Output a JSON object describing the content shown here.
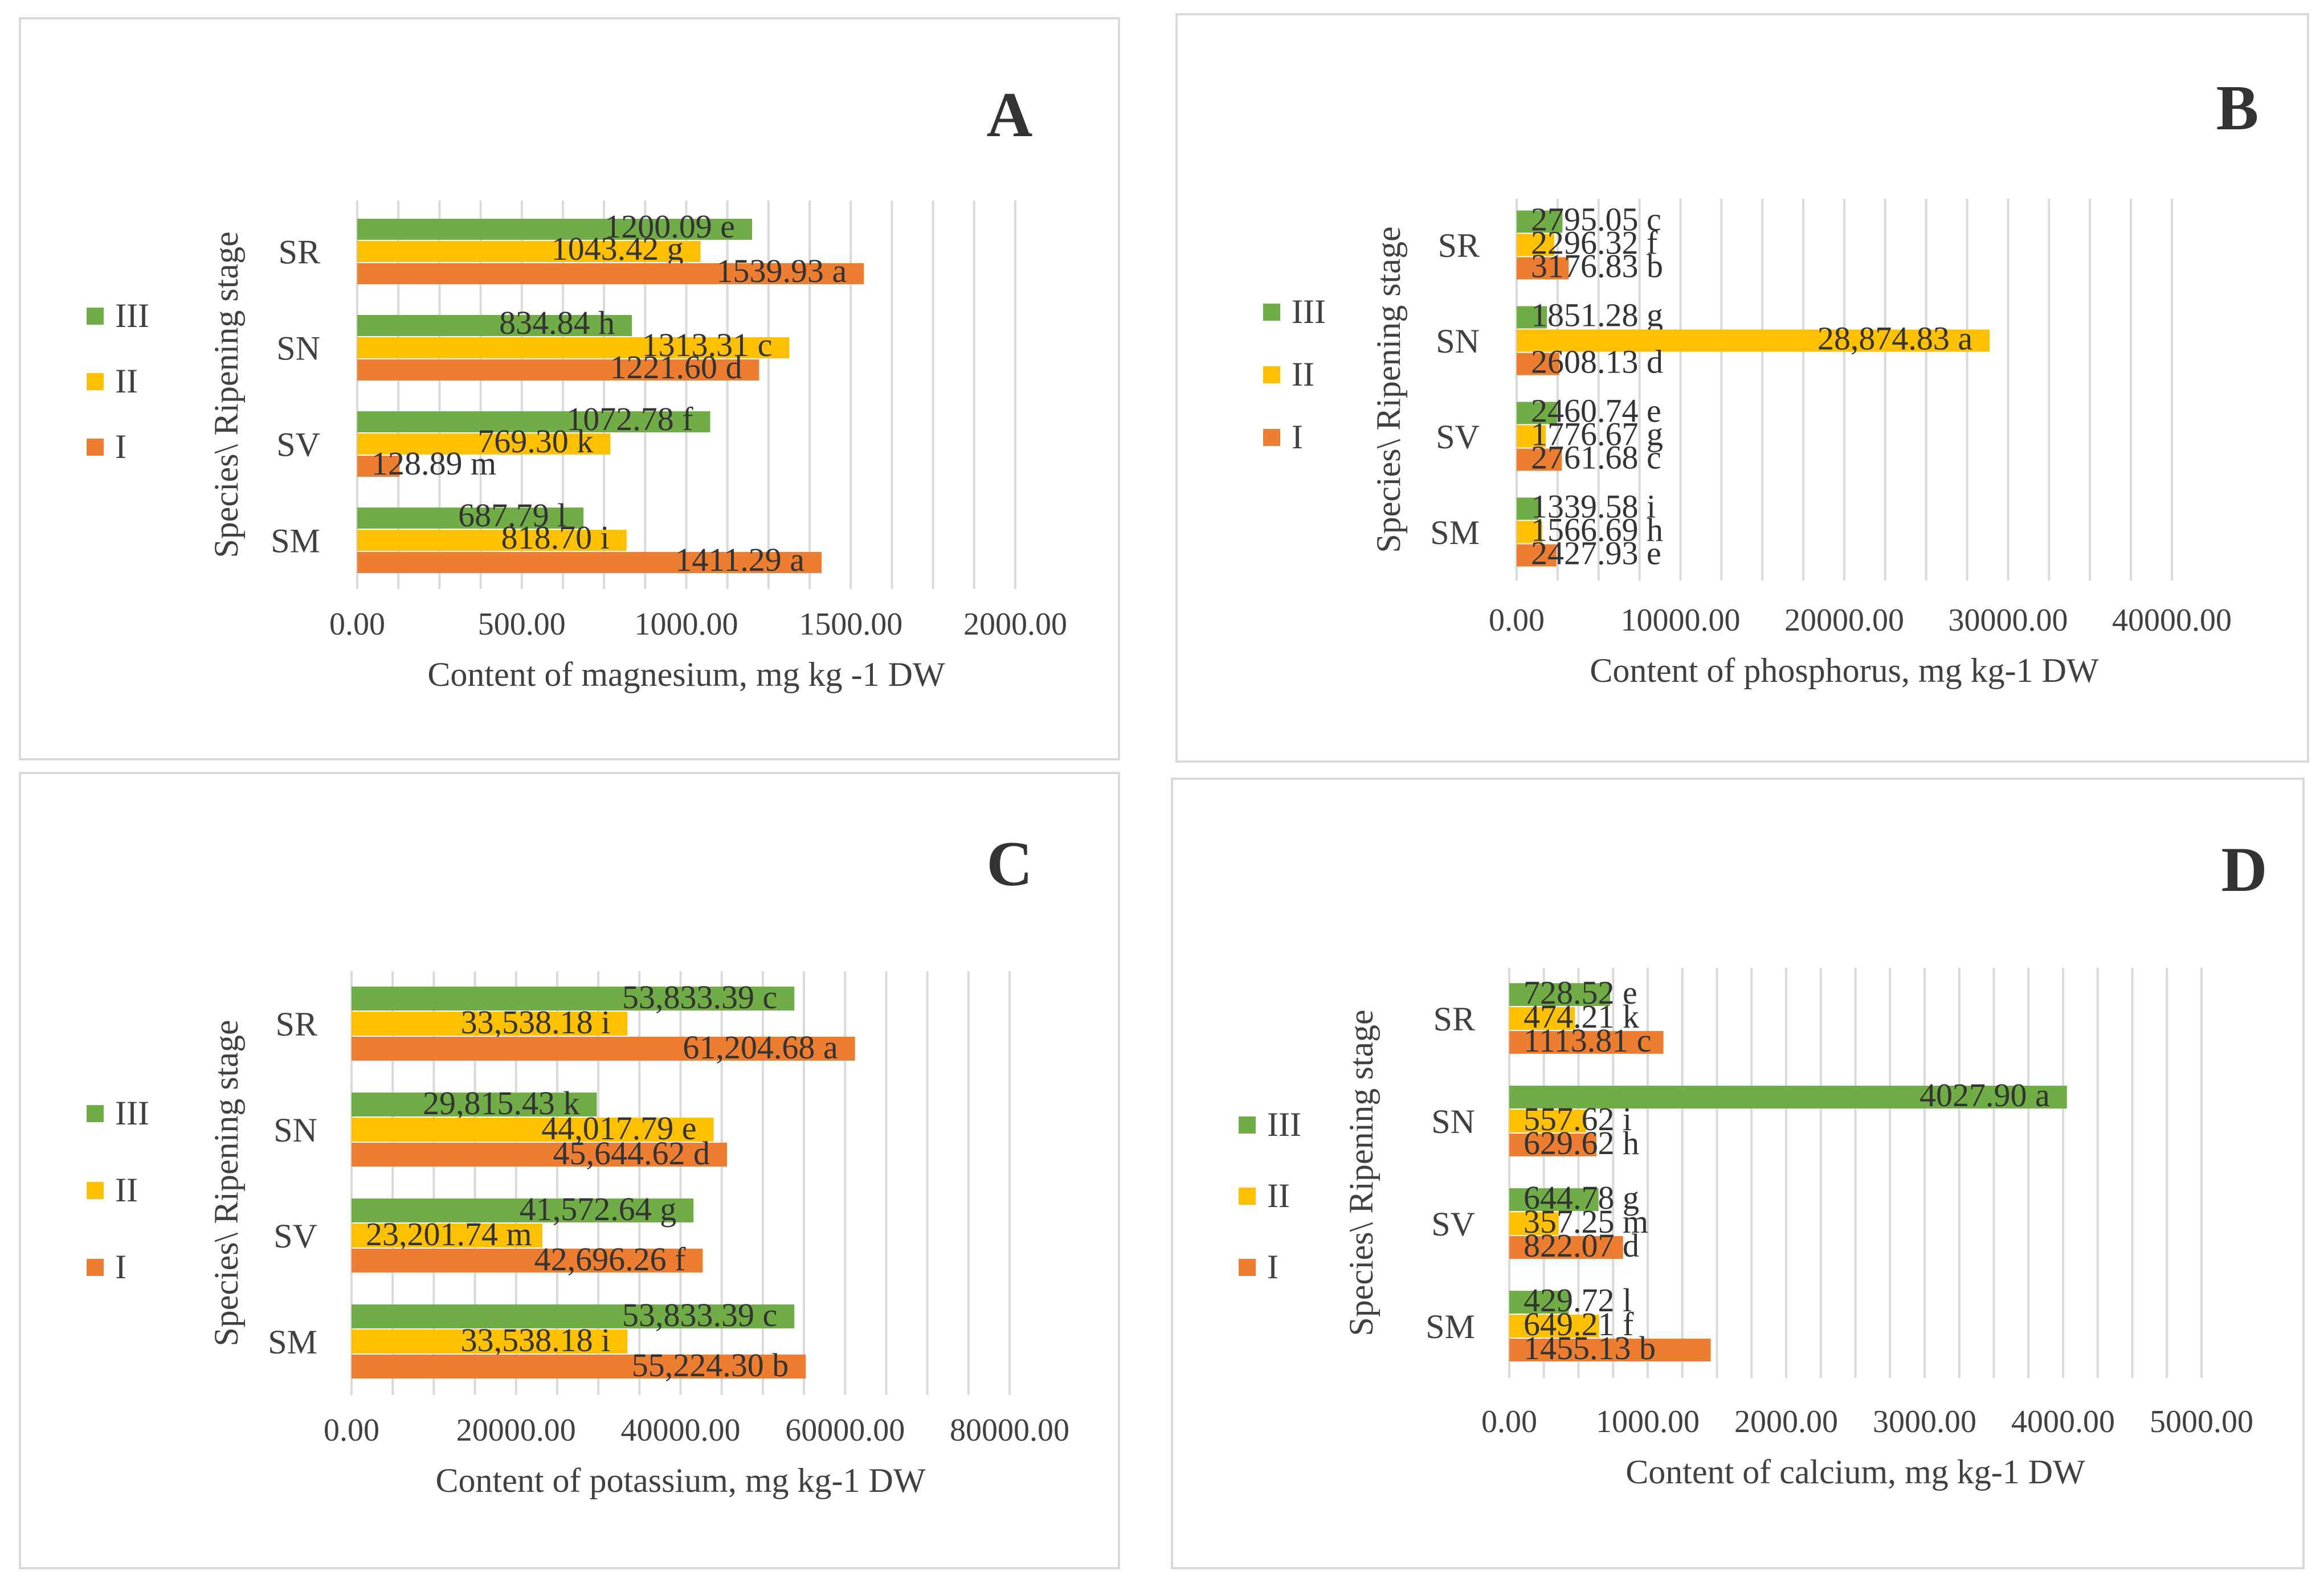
{
  "colors": {
    "I": "#ed7d31",
    "II": "#ffc000",
    "III": "#70ad47"
  },
  "chart_data": [
    {
      "type": "bar",
      "orientation": "horizontal",
      "panel_letter": "A",
      "title": "",
      "categories": [
        "SM",
        "SV",
        "SN",
        "SR"
      ],
      "series": [
        {
          "name": "I",
          "values": [
            1411.29,
            128.89,
            1221.6,
            1539.93
          ],
          "labels": [
            "1411.29 a",
            "128.89 m",
            "1221.60 d",
            "1539.93 a"
          ]
        },
        {
          "name": "II",
          "values": [
            818.7,
            769.3,
            1313.31,
            1043.42
          ],
          "labels": [
            "818.70 i",
            "769.30 k",
            "1313.31 c",
            "1043.42 g"
          ]
        },
        {
          "name": "III",
          "values": [
            687.79,
            1072.78,
            834.84,
            1200.09
          ],
          "labels": [
            "687.79 l",
            "1072.78 f",
            "834.84 h",
            "1200.09 e"
          ]
        }
      ],
      "xlim": [
        0,
        2000
      ],
      "ticks": [
        "0.00",
        "500.00",
        "1000.00",
        "1500.00",
        "2000.00"
      ],
      "xlabel": "Content of magnesium, mg kg -1 DW",
      "ylabel": "Species\\ Ripening stage",
      "legend": [
        "III",
        "II",
        "I"
      ],
      "grid": true
    },
    {
      "type": "bar",
      "orientation": "horizontal",
      "panel_letter": "B",
      "title": "",
      "categories": [
        "SM",
        "SV",
        "SN",
        "SR"
      ],
      "series": [
        {
          "name": "I",
          "values": [
            2427.93,
            2761.68,
            2608.13,
            3176.83
          ],
          "labels": [
            "2427.93 e",
            "2761.68 c",
            "2608.13 d",
            "3176.83 b"
          ]
        },
        {
          "name": "II",
          "values": [
            1566.69,
            1776.67,
            28874.83,
            2296.32
          ],
          "labels": [
            "1566.69 h",
            "1776.67 g",
            "28,874.83 a",
            "2296.32 f"
          ]
        },
        {
          "name": "III",
          "values": [
            1339.58,
            2460.74,
            1851.28,
            2795.05
          ],
          "labels": [
            "1339.58 i",
            "2460.74 e",
            "1851.28 g",
            "2795.05 c"
          ]
        }
      ],
      "xlim": [
        0,
        40000
      ],
      "ticks": [
        "0.00",
        "10000.00",
        "20000.00",
        "30000.00",
        "40000.00"
      ],
      "xlabel": "Content of phosphorus, mg kg-1 DW",
      "ylabel": "Species\\ Ripening stage",
      "legend": [
        "III",
        "II",
        "I"
      ],
      "grid": true
    },
    {
      "type": "bar",
      "orientation": "horizontal",
      "panel_letter": "C",
      "title": "",
      "categories": [
        "SM",
        "SV",
        "SN",
        "SR"
      ],
      "series": [
        {
          "name": "I",
          "values": [
            55224.3,
            42696.26,
            45644.62,
            61204.68
          ],
          "labels": [
            "55,224.30 b",
            "42,696.26 f",
            "45,644.62 d",
            "61,204.68 a"
          ]
        },
        {
          "name": "II",
          "values": [
            33538.18,
            23201.74,
            44017.79,
            33538.18
          ],
          "labels": [
            "33,538.18 i",
            "23,201.74 m",
            "44,017.79 e",
            "33,538.18 i"
          ]
        },
        {
          "name": "III",
          "values": [
            53833.39,
            41572.64,
            29815.43,
            53833.39
          ],
          "labels": [
            "53,833.39 c",
            "41,572.64 g",
            "29,815.43 k",
            "53,833.39 c"
          ]
        }
      ],
      "xlim": [
        0,
        80000
      ],
      "ticks": [
        "0.00",
        "20000.00",
        "40000.00",
        "60000.00",
        "80000.00"
      ],
      "xlabel": "Content of potassium, mg kg-1 DW",
      "ylabel": "Species\\ Ripening stage",
      "legend": [
        "III",
        "II",
        "I"
      ],
      "grid": true
    },
    {
      "type": "bar",
      "orientation": "horizontal",
      "panel_letter": "D",
      "title": "",
      "categories": [
        "SM",
        "SV",
        "SN",
        "SR"
      ],
      "series": [
        {
          "name": "I",
          "values": [
            1455.13,
            822.07,
            629.62,
            1113.81
          ],
          "labels": [
            "1455.13 b",
            "822.07 d",
            "629.62 h",
            "1113.81 c"
          ]
        },
        {
          "name": "II",
          "values": [
            649.21,
            357.25,
            557.62,
            474.21
          ],
          "labels": [
            "649.21 f",
            "357.25 m",
            "557.62 i",
            "474.21 k"
          ]
        },
        {
          "name": "III",
          "values": [
            429.72,
            644.78,
            4027.9,
            728.52
          ],
          "labels": [
            "429.72 l",
            "644.78 g",
            "4027.90 a",
            "728.52 e"
          ]
        }
      ],
      "xlim": [
        0,
        5000
      ],
      "ticks": [
        "0.00",
        "1000.00",
        "2000.00",
        "3000.00",
        "4000.00",
        "5000.00"
      ],
      "xlabel": "Content of calcium, mg kg-1 DW",
      "ylabel": "Species\\ Ripening stage",
      "legend": [
        "III",
        "II",
        "I"
      ],
      "grid": true
    }
  ]
}
